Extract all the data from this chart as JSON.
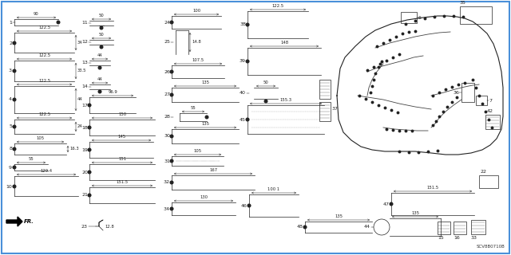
{
  "bg_color": "#ffffff",
  "border_color": "#4a90d9",
  "code": "SCV8B0710B",
  "ec": "#222222",
  "lw": 0.5,
  "num_fs": 4.5,
  "dim_fs": 3.8,
  "arrow_lw": 0.35
}
